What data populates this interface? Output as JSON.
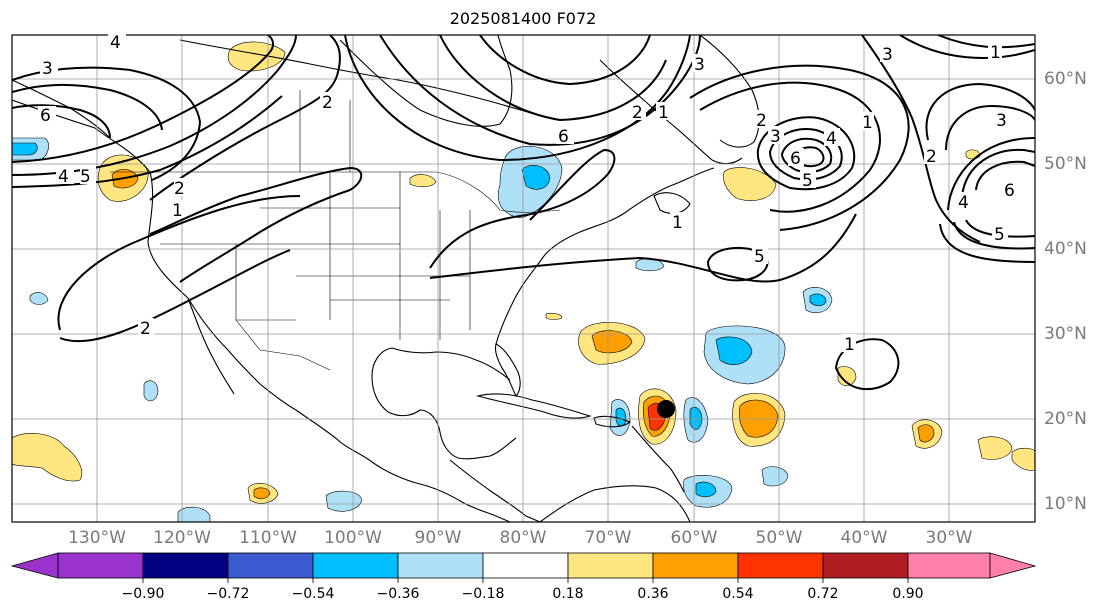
{
  "title": "2025081400 F072",
  "map": {
    "projection": "PlateCarree",
    "lon_range": [
      -135,
      -15
    ],
    "lat_range": [
      8,
      65
    ],
    "lon_labels": [
      "130°W",
      "120°W",
      "110°W",
      "100°W",
      "90°W",
      "80°W",
      "70°W",
      "60°W",
      "50°W",
      "40°W",
      "30°W"
    ],
    "lat_labels": [
      "60°N",
      "50°N",
      "40°N",
      "30°N",
      "20°N",
      "10°N"
    ],
    "contour_labels": [
      "4",
      "3",
      "6",
      "4",
      "5",
      "2",
      "1",
      "2",
      "6",
      "3",
      "2",
      "1",
      "1",
      "3",
      "1",
      "3",
      "2",
      "6",
      "5",
      "4",
      "3",
      "5",
      "2",
      "1",
      "1",
      "6",
      "4",
      "5",
      "2"
    ],
    "storm_marker": "black-dot"
  },
  "colorbar": {
    "ticks": [
      "−0.90",
      "−0.72",
      "−0.54",
      "−0.36",
      "−0.18",
      "0.18",
      "0.36",
      "0.54",
      "0.72",
      "0.90"
    ],
    "colors": [
      "#9a33cc",
      "#000080",
      "#3a5bd0",
      "#00bfff",
      "#aee0f7",
      "#ffffff",
      "#ffe680",
      "#ffa000",
      "#ff3300",
      "#b01e23",
      "#ff80aa"
    ]
  }
}
